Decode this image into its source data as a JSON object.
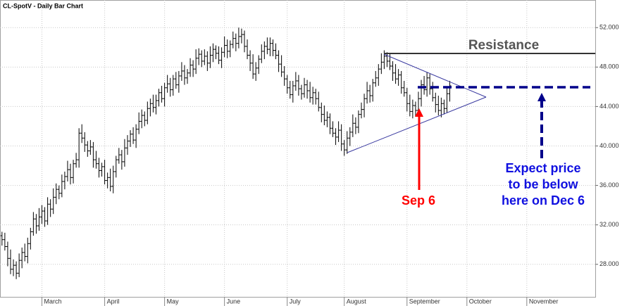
{
  "chart_data": {
    "type": "ohlc",
    "title": "CL-SpotV - Daily Bar Chart",
    "color": "#000000",
    "xlim": [
      -0.7,
      208
    ],
    "xticks": [
      {
        "value": 14,
        "label": "March"
      },
      {
        "value": 36,
        "label": "April"
      },
      {
        "value": 57,
        "label": "May"
      },
      {
        "value": 78,
        "label": "June"
      },
      {
        "value": 100,
        "label": "July"
      },
      {
        "value": 120,
        "label": "August"
      },
      {
        "value": 142,
        "label": "September"
      },
      {
        "value": 163,
        "label": "October"
      },
      {
        "value": 184,
        "label": "November"
      }
    ],
    "ylim": [
      24.7,
      54.8
    ],
    "yticks": [
      {
        "value": 28,
        "label": "28.000"
      },
      {
        "value": 32,
        "label": "32.000"
      },
      {
        "value": 36,
        "label": "36.000"
      },
      {
        "value": 40,
        "label": "40.000"
      },
      {
        "value": 44,
        "label": "44.000"
      },
      {
        "value": 48,
        "label": "48.000"
      },
      {
        "value": 52,
        "label": "52.000"
      }
    ],
    "grid": true,
    "open": [
      30.9,
      30.5,
      29.8,
      28.6,
      27.5,
      27.9,
      27.1,
      28.4,
      29.2,
      28.8,
      30.1,
      31.3,
      32.6,
      31.9,
      32.8,
      33.4,
      32.4,
      34.1,
      33.6,
      34.8,
      35.6,
      35.2,
      36.4,
      36.9,
      37.6,
      36.8,
      38.2,
      38.6,
      41.3,
      40.8,
      40.1,
      39.5,
      39.9,
      38.6,
      38.2,
      37.5,
      37.9,
      36.5,
      36.8,
      35.9,
      37.4,
      38.6,
      39.1,
      38.4,
      39.8,
      40.5,
      41.2,
      40.6,
      41.7,
      42.5,
      43.1,
      42.6,
      43.8,
      44.3,
      43.9,
      44.6,
      45.4,
      44.8,
      45.9,
      46.3,
      45.7,
      46.8,
      46.2,
      47.1,
      47.6,
      46.9,
      47.4,
      48.2,
      47.8,
      48.9,
      49.3,
      48.6,
      49.1,
      48.4,
      49.2,
      49.8,
      49.4,
      48.7,
      49.5,
      50.2,
      49.6,
      50.3,
      50.9,
      50.4,
      51.1,
      51.3,
      50.1,
      49.2,
      48.4,
      47.3,
      47.9,
      48.8,
      49.6,
      50.1,
      49.8,
      50.4,
      49.7,
      49.2,
      48.3,
      47.5,
      46.8,
      45.9,
      45.2,
      46.1,
      46.6,
      45.8,
      45.3,
      46.2,
      45.6,
      44.9,
      45.4,
      44.8,
      43.9,
      43.2,
      42.6,
      42.9,
      41.8,
      41.3,
      40.9,
      41.6,
      40.2,
      39.6,
      40.8,
      41.4,
      42.3,
      41.9,
      43.2,
      43.7,
      44.8,
      45.6,
      45.1,
      46.4,
      46.9,
      47.8,
      48.5,
      49.1,
      48.6,
      48.1,
      47.4,
      46.8,
      47.2,
      45.9,
      45.4,
      44.3,
      43.5,
      44.1,
      43.6,
      44.8,
      46.2,
      45.7,
      46.9,
      45.8,
      44.9,
      44.2,
      43.6,
      44.3,
      43.8,
      45.3
    ],
    "high": [
      31.3,
      31.2,
      30.3,
      29.5,
      28.5,
      28.3,
      29.1,
      29.7,
      30.1,
      30.7,
      31.7,
      33.3,
      33.1,
      33.7,
      34.0,
      33.8,
      34.8,
      34.6,
      35.7,
      36.2,
      36.0,
      37.1,
      37.4,
      38.5,
      38.2,
      38.6,
      39.3,
      41.8,
      42.2,
      41.4,
      40.5,
      40.6,
      40.4,
      39.5,
      38.8,
      38.3,
      38.6,
      37.3,
      37.7,
      38.0,
      39.0,
      39.8,
      39.6,
      40.7,
      41.1,
      41.6,
      41.9,
      42.2,
      43.4,
      43.7,
      43.5,
      44.5,
      44.8,
      45.2,
      45.2,
      45.8,
      46.1,
      46.4,
      47.2,
      46.9,
      47.2,
      47.5,
      47.6,
      48.5,
      48.2,
      47.8,
      48.9,
      48.7,
      49.8,
      49.9,
      49.7,
      49.8,
      49.6,
      50.1,
      50.4,
      50.2,
      50.1,
      50.0,
      51.1,
      50.8,
      50.7,
      51.6,
      51.4,
      52.0,
      51.9,
      51.7,
      50.8,
      49.7,
      49.3,
      48.5,
      49.2,
      50.3,
      50.6,
      51.0,
      51.0,
      50.8,
      50.4,
      49.7,
      49.2,
      48.1,
      47.2,
      46.6,
      46.6,
      47.5,
      47.2,
      46.2,
      46.9,
      46.7,
      46.5,
      46.0,
      45.8,
      45.5,
      44.4,
      44.1,
      43.5,
      43.3,
      42.5,
      41.8,
      42.5,
      42.2,
      40.6,
      41.5,
      41.9,
      43.2,
      42.9,
      43.6,
      44.4,
      45.3,
      46.5,
      46.2,
      46.8,
      47.6,
      48.3,
      49.4,
      49.7,
      49.5,
      49.3,
      48.6,
      48.3,
      47.8,
      47.6,
      46.6,
      45.9,
      45.2,
      44.7,
      44.5,
      45.5,
      46.7,
      47.1,
      47.5,
      47.3,
      46.5,
      45.4,
      45.1,
      44.9,
      44.7,
      46.0,
      46.6
    ],
    "low": [
      29.9,
      29.4,
      27.8,
      27.0,
      26.8,
      26.5,
      26.7,
      27.6,
      28.3,
      28.1,
      29.5,
      30.9,
      31.1,
      31.4,
      32.1,
      31.8,
      32.0,
      32.8,
      33.1,
      34.1,
      34.6,
      34.8,
      35.6,
      36.4,
      36.1,
      36.2,
      37.8,
      37.8,
      40.3,
      39.4,
      38.9,
      39.1,
      37.8,
      37.7,
      36.8,
      36.9,
      36.1,
      35.7,
      35.4,
      35.2,
      36.8,
      38.2,
      37.6,
      37.9,
      39.1,
      39.9,
      40.2,
      39.8,
      41.2,
      41.8,
      42.0,
      42.2,
      43.0,
      43.4,
      43.2,
      44.0,
      44.4,
      44.0,
      45.4,
      45.0,
      45.1,
      45.8,
      45.4,
      46.6,
      46.2,
      46.3,
      47.0,
      47.0,
      47.3,
      48.2,
      48.0,
      48.2,
      47.6,
      47.9,
      48.5,
      48.8,
      48.3,
      47.9,
      49.0,
      48.9,
      49.0,
      49.9,
      49.6,
      49.9,
      50.4,
      49.5,
      48.8,
      47.6,
      46.8,
      46.6,
      47.3,
      48.4,
      48.8,
      49.3,
      49.1,
      49.1,
      48.8,
      47.5,
      47.0,
      46.1,
      45.3,
      44.8,
      44.4,
      45.6,
      45.1,
      44.7,
      44.9,
      44.8,
      44.4,
      44.2,
      44.2,
      43.5,
      42.4,
      42.1,
      41.9,
      41.2,
      40.9,
      40.1,
      40.4,
      39.5,
      39.0,
      39.2,
      40.0,
      40.9,
      41.2,
      41.3,
      42.8,
      42.9,
      44.3,
      44.4,
      44.5,
      46.0,
      46.1,
      47.3,
      47.8,
      48.0,
      47.7,
      46.6,
      46.3,
      46.1,
      45.3,
      45.0,
      43.5,
      43.0,
      42.8,
      43.0,
      43.2,
      44.0,
      45.2,
      45.0,
      45.2,
      44.5,
      43.4,
      43.1,
      42.9,
      43.2,
      43.4,
      44.5
    ],
    "close": [
      30.5,
      29.8,
      28.6,
      27.5,
      27.9,
      27.1,
      28.4,
      29.2,
      28.8,
      30.1,
      31.3,
      32.6,
      31.9,
      32.8,
      33.4,
      32.4,
      34.1,
      33.6,
      34.8,
      35.6,
      35.2,
      36.4,
      36.9,
      37.6,
      36.8,
      38.2,
      38.6,
      41.3,
      40.8,
      40.1,
      39.5,
      39.9,
      38.6,
      38.2,
      37.5,
      37.9,
      36.5,
      36.8,
      35.9,
      37.4,
      38.6,
      39.1,
      38.4,
      39.8,
      40.5,
      41.2,
      40.6,
      41.7,
      42.5,
      43.1,
      42.6,
      43.8,
      44.3,
      43.9,
      44.6,
      45.4,
      44.8,
      45.9,
      46.3,
      45.7,
      46.8,
      46.2,
      47.1,
      47.6,
      46.9,
      47.4,
      48.2,
      47.8,
      48.9,
      49.3,
      48.6,
      49.1,
      48.4,
      49.2,
      49.8,
      49.4,
      48.7,
      49.5,
      50.2,
      49.6,
      50.3,
      50.9,
      50.4,
      51.1,
      51.3,
      50.1,
      49.2,
      48.4,
      47.3,
      47.9,
      48.8,
      49.6,
      50.1,
      49.8,
      50.4,
      49.7,
      49.2,
      48.3,
      47.5,
      46.8,
      45.9,
      45.2,
      46.1,
      46.6,
      45.8,
      45.3,
      46.2,
      45.6,
      44.9,
      45.4,
      44.8,
      43.9,
      43.2,
      42.6,
      42.9,
      41.8,
      41.3,
      40.9,
      41.6,
      40.2,
      39.6,
      40.8,
      41.4,
      42.3,
      41.9,
      43.2,
      43.7,
      44.8,
      45.6,
      45.1,
      46.4,
      46.9,
      47.8,
      48.5,
      49.1,
      48.6,
      48.1,
      47.4,
      46.8,
      47.2,
      45.9,
      45.4,
      44.3,
      43.5,
      44.1,
      43.6,
      44.8,
      46.2,
      45.7,
      46.9,
      45.8,
      44.9,
      44.2,
      43.6,
      44.3,
      43.8,
      45.3,
      46.1
    ],
    "annotations": {
      "resistance": "Resistance",
      "arrow_label": "Sep 6",
      "expectation": [
        "Expect price",
        "to be below",
        "here on Dec 6"
      ]
    }
  }
}
